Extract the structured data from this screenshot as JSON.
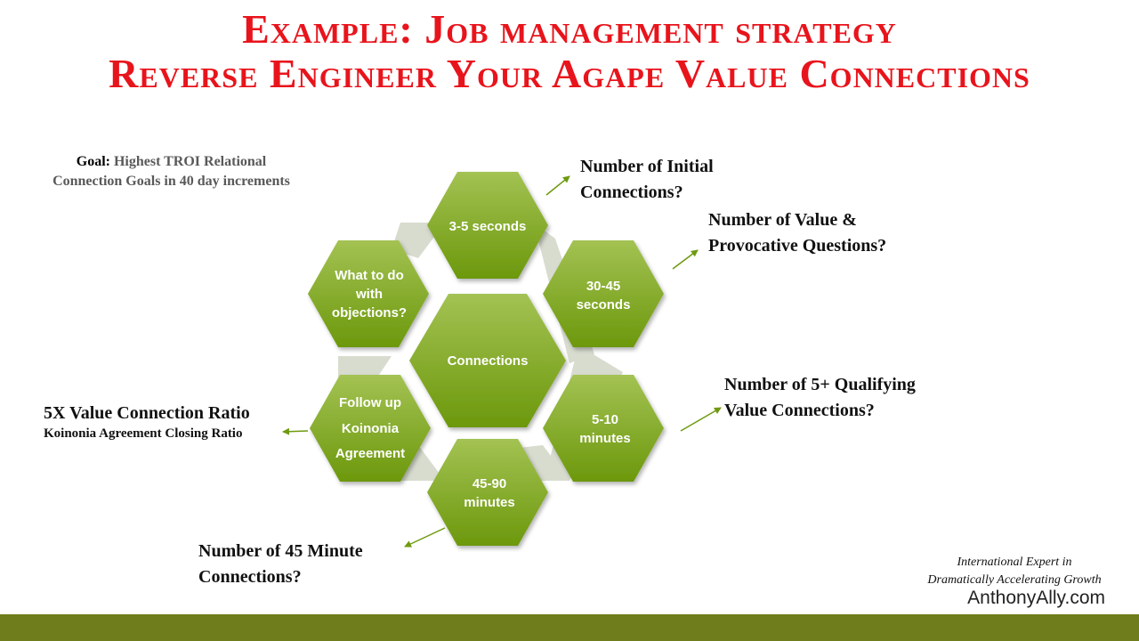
{
  "title": {
    "line1": "Example: Job management strategy",
    "line2": "Reverse Engineer Your Agape Value Connections"
  },
  "goal": {
    "label": "Goal:",
    "text_line1": "Highest TROI Relational",
    "text_line2": "Connection Goals in 40 day increments"
  },
  "hexagons": {
    "center": "Connections",
    "top": "3-5 seconds",
    "upper_right": [
      "30-45",
      "seconds"
    ],
    "lower_right": [
      "5-10",
      "minutes"
    ],
    "bottom": [
      "45-90",
      "minutes"
    ],
    "lower_left": [
      "Follow up",
      "Koinonia",
      "Agreement"
    ],
    "upper_left": [
      "What to do",
      "with",
      "objections?"
    ]
  },
  "callouts": {
    "initial": [
      "Number of Initial",
      "Connections?"
    ],
    "value_questions": [
      "Number of Value &",
      "Provocative Questions?"
    ],
    "qualifying": [
      "Number of 5+ Qualifying",
      "Value Connections?"
    ],
    "minute45": [
      "Number of 45 Minute",
      "Connections?"
    ],
    "ratio_title": "5X Value Connection Ratio",
    "ratio_sub": "Koinonia Agreement Closing Ratio"
  },
  "footer": {
    "line1": "International Expert in",
    "line2": "Dramatically Accelerating Growth",
    "site": "AnthonyAlly.com"
  },
  "colors": {
    "title_red": "#e8141c",
    "hex_green_light": "#9cbd4a",
    "hex_green_dark": "#6f9a10",
    "connector_gray": "#d6dbcc",
    "bottom_bar": "#6f7d1c"
  }
}
